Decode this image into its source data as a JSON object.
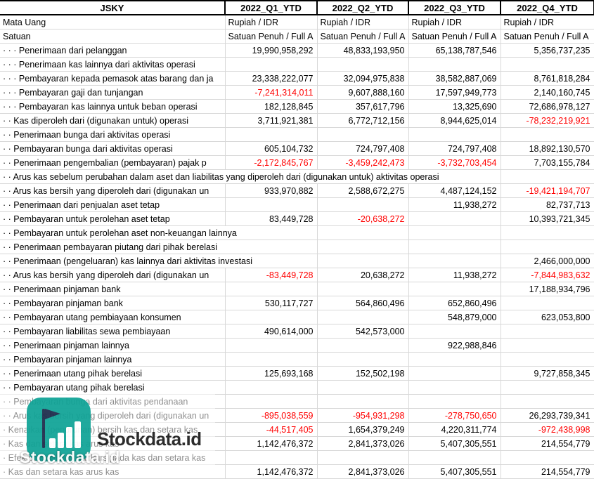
{
  "header": {
    "corner": "JSKY",
    "cols": [
      "2022_Q1_YTD",
      "2022_Q2_YTD",
      "2022_Q3_YTD",
      "2022_Q4_YTD"
    ]
  },
  "meta_rows": [
    {
      "label": "Mata Uang",
      "values": [
        "Rupiah / IDR",
        "Rupiah / IDR",
        "Rupiah / IDR",
        "Rupiah / IDR"
      ]
    },
    {
      "label": "Satuan",
      "values": [
        "Satuan Penuh / Full A",
        "Satuan Penuh / Full A",
        "Satuan Penuh / Full A",
        "Satuan Penuh / Full A"
      ]
    }
  ],
  "rows": [
    {
      "label": "· · · Penerimaan dari pelanggan",
      "values": [
        "19,990,958,292",
        "48,833,193,950",
        "65,138,787,546",
        "5,356,737,235"
      ]
    },
    {
      "label": "· · · Penerimaan kas lainnya dari aktivitas operasi",
      "values": [
        "",
        "",
        "",
        ""
      ]
    },
    {
      "label": "· · · Pembayaran kepada pemasok atas barang dan ja",
      "values": [
        "23,338,222,077",
        "32,094,975,838",
        "38,582,887,069",
        "8,761,818,284"
      ]
    },
    {
      "label": "· · · Pembayaran gaji dan tunjangan",
      "values": [
        "-7,241,314,011",
        "9,607,888,160",
        "17,597,949,773",
        "2,140,160,745"
      ]
    },
    {
      "label": "· · · Pembayaran kas lainnya untuk beban operasi",
      "values": [
        "182,128,845",
        "357,617,796",
        "13,325,690",
        "72,686,978,127"
      ]
    },
    {
      "label": "· · Kas diperoleh dari (digunakan untuk) operasi",
      "values": [
        "3,711,921,381",
        "6,772,712,156",
        "8,944,625,014",
        "-78,232,219,921"
      ]
    },
    {
      "label": "· · Penerimaan bunga dari aktivitas operasi",
      "values": [
        "",
        "",
        "",
        ""
      ]
    },
    {
      "label": "· · Pembayaran bunga dari aktivitas operasi",
      "values": [
        "605,104,732",
        "724,797,408",
        "724,797,408",
        "18,892,130,570"
      ]
    },
    {
      "label": "· · Penerimaan pengembalian (pembayaran) pajak p",
      "values": [
        "-2,172,845,767",
        "-3,459,242,473",
        "-3,732,703,454",
        "7,703,155,784"
      ]
    },
    {
      "label": "· · Arus kas sebelum perubahan dalam aset dan liabilitas yang diperoleh dari (digunakan untuk) aktivitas operasi",
      "values": [
        "",
        "",
        "",
        ""
      ],
      "span": 4
    },
    {
      "label": "· · Arus kas bersih yang diperoleh dari (digunakan un",
      "values": [
        "933,970,882",
        "2,588,672,275",
        "4,487,124,152",
        "-19,421,194,707"
      ]
    },
    {
      "label": "· · Penerimaan dari penjualan aset tetap",
      "values": [
        "",
        "",
        "11,938,272",
        "82,737,713"
      ]
    },
    {
      "label": "· · Pembayaran untuk perolehan aset tetap",
      "values": [
        "83,449,728",
        "-20,638,272",
        "",
        "10,393,721,345"
      ]
    },
    {
      "label": "· · Pembayaran untuk perolehan aset non-keuangan lainnya",
      "values": [
        "",
        "",
        "",
        ""
      ],
      "span": 2
    },
    {
      "label": "· · Penerimaan pembayaran piutang dari pihak berelasi",
      "values": [
        "",
        "",
        "",
        ""
      ],
      "span": 2
    },
    {
      "label": "· · Penerimaan (pengeluaran) kas lainnya dari aktivitas investasi",
      "values": [
        "",
        "",
        "",
        "2,466,000,000"
      ],
      "span": 2
    },
    {
      "label": "· · Arus kas bersih yang diperoleh dari (digunakan un",
      "values": [
        "-83,449,728",
        "20,638,272",
        "11,938,272",
        "-7,844,983,632"
      ]
    },
    {
      "label": "· · Penerimaan pinjaman bank",
      "values": [
        "",
        "",
        "",
        "17,188,934,796"
      ]
    },
    {
      "label": "· · Pembayaran pinjaman bank",
      "values": [
        "530,117,727",
        "564,860,496",
        "652,860,496",
        ""
      ]
    },
    {
      "label": "· · Pembayaran utang pembiayaan konsumen",
      "values": [
        "",
        "",
        "548,879,000",
        "623,053,800"
      ]
    },
    {
      "label": "· · Pembayaran liabilitas sewa pembiayaan",
      "values": [
        "490,614,000",
        "542,573,000",
        "",
        ""
      ]
    },
    {
      "label": "· · Penerimaan pinjaman lainnya",
      "values": [
        "",
        "",
        "922,988,846",
        ""
      ]
    },
    {
      "label": "· · Pembayaran pinjaman lainnya",
      "values": [
        "",
        "",
        "",
        ""
      ]
    },
    {
      "label": "· · Penerimaan utang pihak berelasi",
      "values": [
        "125,693,168",
        "152,502,198",
        "",
        "9,727,858,345"
      ]
    },
    {
      "label": "· · Pembayaran utang pihak berelasi",
      "values": [
        "",
        "",
        "",
        ""
      ]
    },
    {
      "label": "· · Pembayaran bunga dari aktivitas pendanaan",
      "values": [
        "",
        "",
        "",
        ""
      ]
    },
    {
      "label": "· · Arus kas bersih yang diperoleh dari (digunakan un",
      "values": [
        "-895,038,559",
        "-954,931,298",
        "-278,750,650",
        "26,293,739,341"
      ]
    },
    {
      "label": "· Kenaikan (penurunan) bersih kas dan setara kas",
      "values": [
        "-44,517,405",
        "1,654,379,249",
        "4,220,311,774",
        "-972,438,998"
      ]
    },
    {
      "label": "· Kas dan setara kas arus kas",
      "values": [
        "1,142,476,372",
        "2,841,373,026",
        "5,407,305,551",
        "214,554,779"
      ]
    },
    {
      "label": "· Efek perubahan nilai kurs pada kas dan setara kas",
      "values": [
        "",
        "",
        "",
        ""
      ]
    },
    {
      "label": "· Kas dan setara kas arus kas",
      "values": [
        "1,142,476,372",
        "2,841,373,026",
        "5,407,305,551",
        "214,554,779"
      ]
    }
  ],
  "watermark": {
    "brand": "Stockdata.id",
    "logo_teal": "#0fa396",
    "logo_navy": "#1b2b4b"
  },
  "colors": {
    "negative_value": "#ff0000",
    "gridline": "#d8d8d8",
    "header_border": "#000000"
  }
}
